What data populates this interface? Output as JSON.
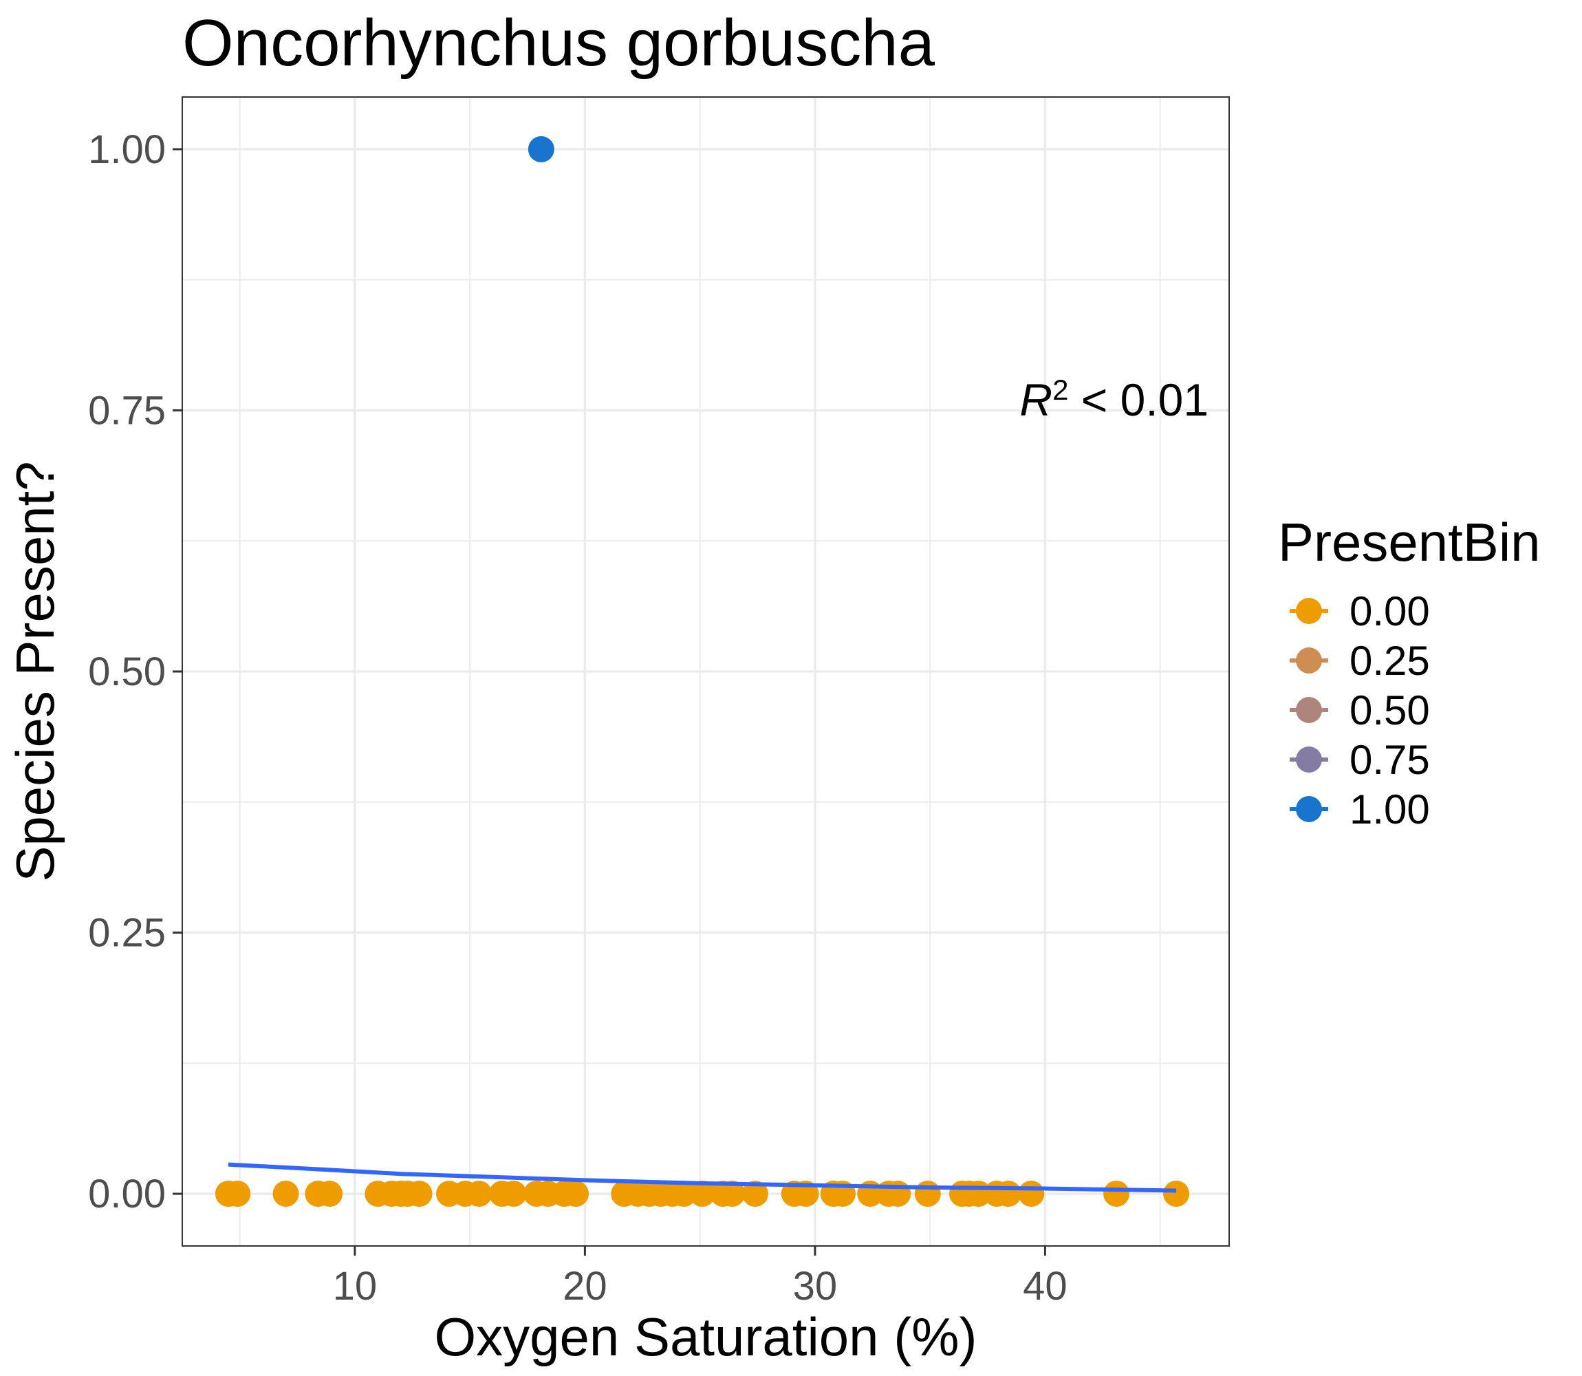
{
  "chart_data": {
    "type": "scatter",
    "title": "Oncorhynchus gorbuscha",
    "xlabel": "Oxygen Saturation (%)",
    "ylabel": "Species Present?",
    "xlim": [
      2.5,
      48
    ],
    "ylim": [
      -0.05,
      1.05
    ],
    "x_ticks": [
      10,
      20,
      30,
      40
    ],
    "x_tick_labels": [
      "10",
      "20",
      "30",
      "40"
    ],
    "y_ticks": [
      0,
      0.25,
      0.5,
      0.75,
      1
    ],
    "y_tick_labels": [
      "0.00",
      "0.25",
      "0.50",
      "0.75",
      "1.00"
    ],
    "grid": true,
    "legend": {
      "title": "PresentBin",
      "position": "right",
      "entries": [
        {
          "label": "0.00",
          "color": "#EE9C00"
        },
        {
          "label": "0.25",
          "color": "#CE8E53"
        },
        {
          "label": "0.50",
          "color": "#AE857D"
        },
        {
          "label": "0.75",
          "color": "#847CA3"
        },
        {
          "label": "1.00",
          "color": "#1874CD"
        }
      ]
    },
    "points": [
      {
        "x": 4.5,
        "y": 0
      },
      {
        "x": 4.9,
        "y": 0
      },
      {
        "x": 7.0,
        "y": 0
      },
      {
        "x": 8.4,
        "y": 0
      },
      {
        "x": 8.9,
        "y": 0
      },
      {
        "x": 11.0,
        "y": 0
      },
      {
        "x": 11.6,
        "y": 0
      },
      {
        "x": 12.0,
        "y": 0
      },
      {
        "x": 12.3,
        "y": 0
      },
      {
        "x": 12.8,
        "y": 0
      },
      {
        "x": 14.1,
        "y": 0
      },
      {
        "x": 14.8,
        "y": 0
      },
      {
        "x": 15.4,
        "y": 0
      },
      {
        "x": 16.4,
        "y": 0
      },
      {
        "x": 16.9,
        "y": 0
      },
      {
        "x": 17.9,
        "y": 0
      },
      {
        "x": 18.4,
        "y": 0
      },
      {
        "x": 19.1,
        "y": 0
      },
      {
        "x": 19.6,
        "y": 0
      },
      {
        "x": 21.7,
        "y": 0
      },
      {
        "x": 22.3,
        "y": 0
      },
      {
        "x": 22.8,
        "y": 0
      },
      {
        "x": 23.3,
        "y": 0
      },
      {
        "x": 23.8,
        "y": 0
      },
      {
        "x": 24.3,
        "y": 0
      },
      {
        "x": 25.1,
        "y": 0
      },
      {
        "x": 26.0,
        "y": 0
      },
      {
        "x": 26.4,
        "y": 0
      },
      {
        "x": 27.4,
        "y": 0
      },
      {
        "x": 29.1,
        "y": 0
      },
      {
        "x": 29.6,
        "y": 0
      },
      {
        "x": 30.8,
        "y": 0
      },
      {
        "x": 31.2,
        "y": 0
      },
      {
        "x": 32.4,
        "y": 0
      },
      {
        "x": 33.2,
        "y": 0
      },
      {
        "x": 33.6,
        "y": 0
      },
      {
        "x": 34.9,
        "y": 0
      },
      {
        "x": 36.4,
        "y": 0
      },
      {
        "x": 36.7,
        "y": 0
      },
      {
        "x": 37.1,
        "y": 0
      },
      {
        "x": 37.9,
        "y": 0
      },
      {
        "x": 38.4,
        "y": 0
      },
      {
        "x": 39.4,
        "y": 0
      },
      {
        "x": 43.1,
        "y": 0
      },
      {
        "x": 45.7,
        "y": 0
      },
      {
        "x": 18.1,
        "y": 1
      }
    ],
    "fit_line": {
      "color": "#3366FF",
      "x": [
        4.5,
        8,
        12,
        16,
        20,
        25,
        30,
        35,
        40,
        45.7
      ],
      "y": [
        0.028,
        0.024,
        0.019,
        0.016,
        0.013,
        0.01,
        0.008,
        0.006,
        0.005,
        0.003
      ]
    },
    "annotation": {
      "base": "R",
      "sup": "2",
      "rest": " < 0.01",
      "x": 43,
      "y": 0.745
    }
  }
}
